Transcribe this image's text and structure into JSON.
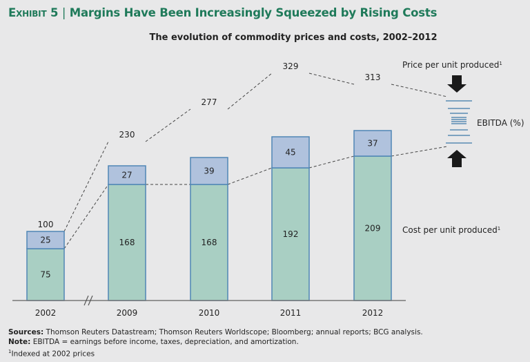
{
  "header": {
    "exhibit": "Exhibit 5",
    "separator": "|",
    "title": "Margins Have Been Increasingly Squeezed by Rising Costs"
  },
  "chart_data": {
    "type": "bar",
    "stacked": true,
    "title": "The evolution of commodity prices and costs, 2002–2012",
    "xlabel": "",
    "ylabel": "",
    "categories": [
      "2002",
      "2009",
      "2010",
      "2011",
      "2012"
    ],
    "axis_break_between": [
      "2002",
      "2009"
    ],
    "series": [
      {
        "name": "Cost per unit produced",
        "values": [
          75,
          168,
          168,
          192,
          209
        ],
        "color": "#a9cfc3"
      },
      {
        "name": "EBITDA",
        "values": [
          25,
          27,
          39,
          45,
          37
        ],
        "color": "#b0c2dd"
      }
    ],
    "totals": [
      100,
      230,
      277,
      329,
      313
    ],
    "total_label": "Price per unit produced",
    "total_label_sup": "1",
    "cost_label": "Cost per unit produced",
    "cost_label_sup": "1",
    "ebitda_label": "EBITDA (%)",
    "ylim": [
      0,
      340
    ],
    "grid": false,
    "edge_color": "#4f86b5"
  },
  "footnotes": {
    "sources_label": "Sources:",
    "sources": "Thomson Reuters Datastream; Thomson Reuters Worldscope; Bloomberg; annual reports; BCG analysis.",
    "note_label": "Note:",
    "note": "EBITDA = earnings before income, taxes, depreciation, and amortization.",
    "indexed_sup": "1",
    "indexed": "Indexed at 2002 prices"
  }
}
